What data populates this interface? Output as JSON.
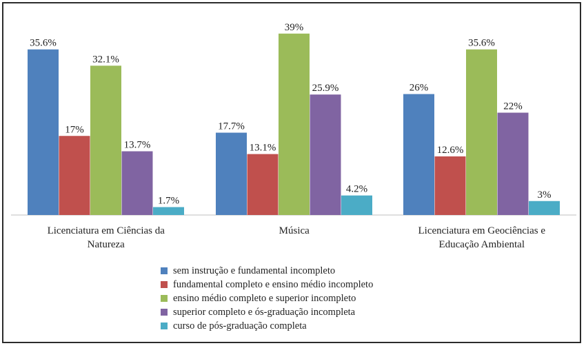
{
  "chart_data": {
    "type": "bar",
    "title": "",
    "xlabel": "",
    "ylabel": "",
    "ylim": [
      0,
      40
    ],
    "grid": false,
    "legend_position": "bottom",
    "categories": [
      "Licenciatura em Ciências da Natureza",
      "Música",
      "Licenciatura em Geociências e Educação Ambiental"
    ],
    "category_lines": [
      [
        "Licenciatura em Ciências da",
        "Natureza"
      ],
      [
        "Música"
      ],
      [
        "Licenciatura em Geociências e",
        "Educação Ambiental"
      ]
    ],
    "series": [
      {
        "name": "sem instrução e fundamental incompleto",
        "color": "#4F81BD",
        "values": [
          35.6,
          17.7,
          26
        ],
        "labels": [
          "35.6%",
          "17.7%",
          "26%"
        ]
      },
      {
        "name": "fundamental completo e ensino médio incompleto",
        "color": "#C0504D",
        "values": [
          17,
          13.1,
          12.6
        ],
        "labels": [
          "17%",
          "13.1%",
          "12.6%"
        ]
      },
      {
        "name": "ensino médio completo e superior incompleto",
        "color": "#9BBB59",
        "values": [
          32.1,
          39,
          35.6
        ],
        "labels": [
          "32.1%",
          "39%",
          "35.6%"
        ]
      },
      {
        "name": "superior completo e ós-graduação incompleta",
        "color": "#8064A2",
        "values": [
          13.7,
          25.9,
          22
        ],
        "labels": [
          "13.7%",
          "25.9%",
          "22%"
        ]
      },
      {
        "name": "curso de pós-graduação completa",
        "color": "#4BACC6",
        "values": [
          1.7,
          4.2,
          3
        ],
        "labels": [
          "1.7%",
          "4.2%",
          "3%"
        ]
      }
    ]
  }
}
